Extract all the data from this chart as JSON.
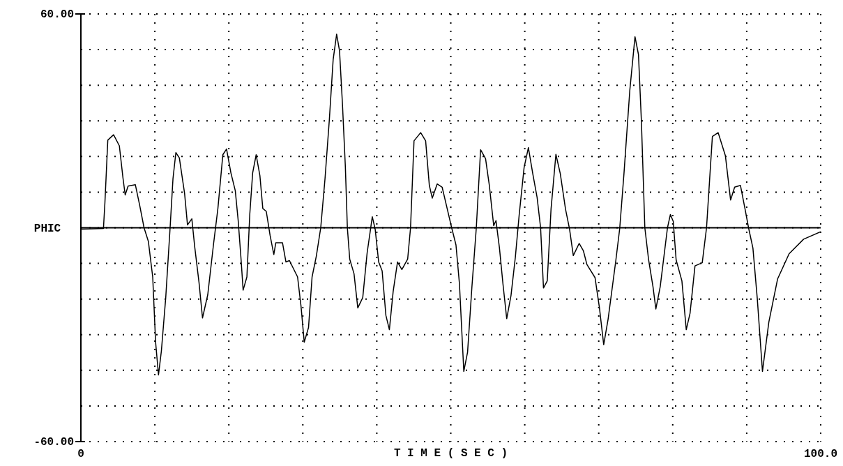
{
  "chart_data": {
    "type": "line",
    "xlabel": "T I M E   ( S E C )",
    "ylabel": "PHIC",
    "color": "#000000",
    "grid": true,
    "line_style": "solid",
    "marker": "none",
    "xlim": [
      0,
      100
    ],
    "xticks": [
      {
        "value": 0,
        "label": "0"
      },
      {
        "value": 10,
        "label": null
      },
      {
        "value": 20,
        "label": null
      },
      {
        "value": 30,
        "label": null
      },
      {
        "value": 40,
        "label": null
      },
      {
        "value": 50,
        "label": null
      },
      {
        "value": 60,
        "label": null
      },
      {
        "value": 70,
        "label": null
      },
      {
        "value": 80,
        "label": null
      },
      {
        "value": 90,
        "label": null
      },
      {
        "value": 100,
        "label": "100.0"
      }
    ],
    "ylim": [
      -60,
      60
    ],
    "yticks": [
      {
        "value": -60,
        "label": "-60.00"
      },
      {
        "value": -50,
        "label": null
      },
      {
        "value": -40,
        "label": null
      },
      {
        "value": -30,
        "label": null
      },
      {
        "value": -20,
        "label": null
      },
      {
        "value": -10,
        "label": null
      },
      {
        "value": 0,
        "label": null
      },
      {
        "value": 10,
        "label": null
      },
      {
        "value": 20,
        "label": null
      },
      {
        "value": 30,
        "label": null
      },
      {
        "value": 40,
        "label": null
      },
      {
        "value": 50,
        "label": null
      },
      {
        "value": 60,
        "label": "60.00"
      }
    ],
    "ref_lines": [
      {
        "axis": "y",
        "value": 0
      }
    ],
    "x": [
      0,
      3.05,
      3.25,
      3.64,
      4.42,
      5.2,
      5.7,
      5.99,
      6.38,
      7.36,
      7.95,
      8.54,
      9.12,
      9.71,
      10.1,
      10.49,
      10.88,
      11.47,
      12.06,
      12.45,
      12.84,
      13.31,
      14.02,
      14.41,
      15.0,
      15.39,
      15.97,
      16.44,
      17.15,
      17.93,
      18.52,
      19.19,
      19.69,
      20.28,
      20.87,
      21.26,
      21.65,
      21.93,
      22.44,
      22.83,
      23.22,
      23.69,
      24.2,
      24.59,
      25.06,
      25.57,
      26.08,
      26.35,
      27.25,
      27.72,
      28.19,
      29.29,
      29.76,
      30.19,
      30.77,
      31.25,
      31.83,
      32.42,
      33.0,
      33.59,
      34.1,
      34.57,
      34.96,
      35.36,
      35.75,
      36.02,
      36.34,
      36.92,
      37.43,
      38.1,
      38.69,
      39.15,
      39.39,
      39.78,
      40.25,
      40.72,
      41.23,
      41.7,
      42.21,
      42.8,
      43.39,
      44.17,
      44.56,
      45.03,
      45.93,
      46.6,
      47.1,
      47.5,
      48.16,
      48.83,
      49.53,
      50.12,
      50.7,
      51.17,
      51.76,
      52.27,
      52.86,
      53.45,
      54.03,
      54.7,
      55.21,
      55.8,
      56.11,
      56.58,
      57.05,
      57.56,
      58.14,
      58.73,
      59.24,
      59.91,
      60.49,
      61.08,
      61.67,
      62.14,
      62.53,
      63.04,
      63.55,
      64.21,
      64.8,
      65.51,
      66.05,
      66.56,
      67.35,
      67.93,
      68.4,
      69.5,
      70.09,
      70.67,
      71.26,
      72.32,
      72.83,
      73.41,
      74.2,
      74.9,
      75.37,
      75.76,
      76.23,
      76.74,
      77.33,
      77.72,
      78.31,
      79.29,
      79.68,
      80.07,
      80.46,
      81.24,
      81.83,
      82.34,
      83.01,
      83.99,
      84.57,
      85.36,
      86.14,
      87.12,
      87.82,
      88.37,
      89.15,
      89.78,
      90.25,
      90.84,
      91.43,
      92.13,
      92.99,
      94.17,
      95.73,
      97.69,
      100
    ],
    "values": [
      -0.4,
      -0.2,
      7.1,
      24.6,
      26.1,
      23,
      13.8,
      9.2,
      11.7,
      12.1,
      6.3,
      0,
      -3.8,
      -13.8,
      -32.1,
      -41.3,
      -34.6,
      -19.6,
      0,
      13.8,
      21.1,
      19.6,
      9.6,
      0.8,
      2.5,
      -5.4,
      -15.4,
      -25.3,
      -18.8,
      -4.6,
      5.4,
      20.5,
      22.1,
      15.4,
      10.4,
      2.1,
      -8.8,
      -17.5,
      -13.8,
      3.8,
      15.4,
      20.5,
      14.6,
      5.4,
      4.6,
      -2.1,
      -7.5,
      -4.2,
      -4.2,
      -9.6,
      -9.2,
      -13.8,
      -22.1,
      -32.1,
      -28,
      -13.8,
      -7.9,
      0,
      13.8,
      30.5,
      47.2,
      54.3,
      49.7,
      34.6,
      17.1,
      0,
      -8.8,
      -12.9,
      -22.5,
      -19.6,
      -7.1,
      -0.4,
      3.1,
      -0.4,
      -9.6,
      -12.1,
      -24.6,
      -28.6,
      -17.9,
      -9.6,
      -11.7,
      -8.8,
      0,
      24.4,
      26.7,
      24.4,
      11.9,
      8.3,
      12.3,
      11.4,
      5.2,
      0,
      -4.8,
      -15.7,
      -40.3,
      -34.9,
      -16.5,
      0,
      21.9,
      19.4,
      11.9,
      0.6,
      2.0,
      -5.7,
      -15.7,
      -25.5,
      -19.0,
      -8.2,
      3.5,
      16.9,
      22.5,
      15.2,
      8.5,
      0,
      -16.9,
      -14.9,
      5.2,
      20.6,
      15.2,
      5.2,
      -0.3,
      -7.8,
      -4.4,
      -6.5,
      -10.3,
      -14.0,
      -22.4,
      -32.8,
      -25.7,
      -9.0,
      -0.3,
      15.2,
      38.6,
      53.6,
      48.6,
      30.2,
      0,
      -9.0,
      -16.5,
      -22.8,
      -16.5,
      0,
      3.7,
      1.8,
      -9.0,
      -14.9,
      -28.6,
      -24.0,
      -10.7,
      -9.8,
      0,
      25.6,
      26.7,
      20.2,
      7.8,
      11.4,
      11.9,
      5.2,
      0,
      -5.7,
      -19.9,
      -40.3,
      -26.5,
      -14.4,
      -7.3,
      -3.2,
      -1.1
    ]
  }
}
